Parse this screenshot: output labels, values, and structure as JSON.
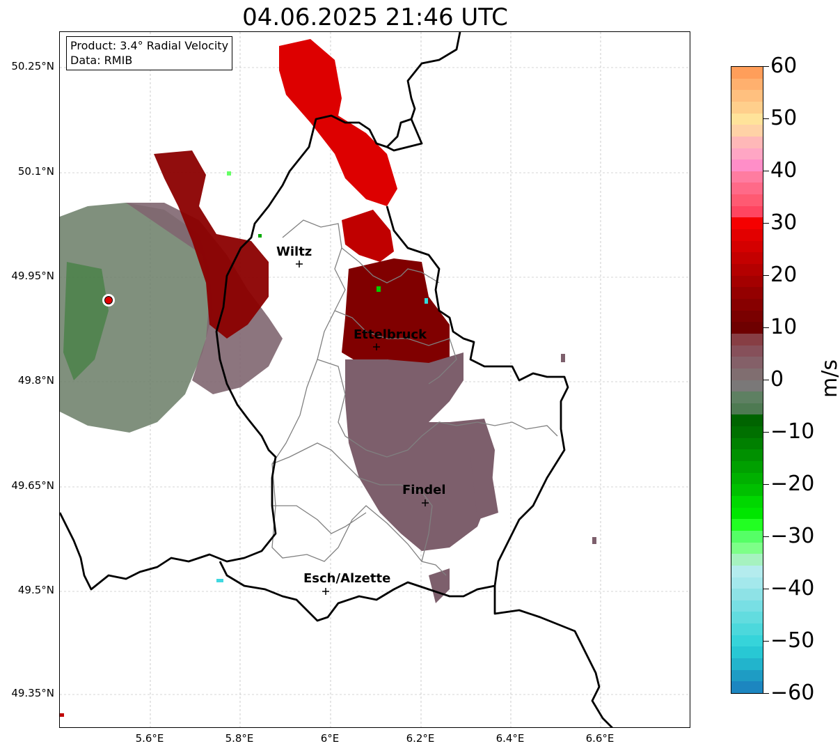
{
  "title": "04.06.2025 21:46 UTC",
  "info": {
    "product": "Product: 3.4° Radial Velocity",
    "data": "Data: RMIB"
  },
  "lat_labels": [
    "50.25°N",
    "50.1°N",
    "49.95°N",
    "49.8°N",
    "49.65°N",
    "49.5°N",
    "49.35°N"
  ],
  "lon_labels": [
    "5.6°E",
    "5.8°E",
    "6°E",
    "6.2°E",
    "6.4°E",
    "6.6°E"
  ],
  "places": [
    "Wiltz",
    "Ettelbruck",
    "Findel",
    "Esch/Alzette"
  ],
  "colorbar": {
    "unit": "m/s",
    "ticks": [
      "60",
      "50",
      "40",
      "30",
      "20",
      "10",
      "0",
      "−10",
      "−20",
      "−30",
      "−40",
      "−50",
      "−60"
    ],
    "range": [
      -60,
      60
    ]
  },
  "colors": {
    "strong_red": "#d90000",
    "dark_red": "#8b0000",
    "near_zero_mauve": "#806070",
    "green": "#5c8560",
    "bright_green": "#00c800",
    "border_black": "#000000",
    "province_grey": "#808080"
  }
}
